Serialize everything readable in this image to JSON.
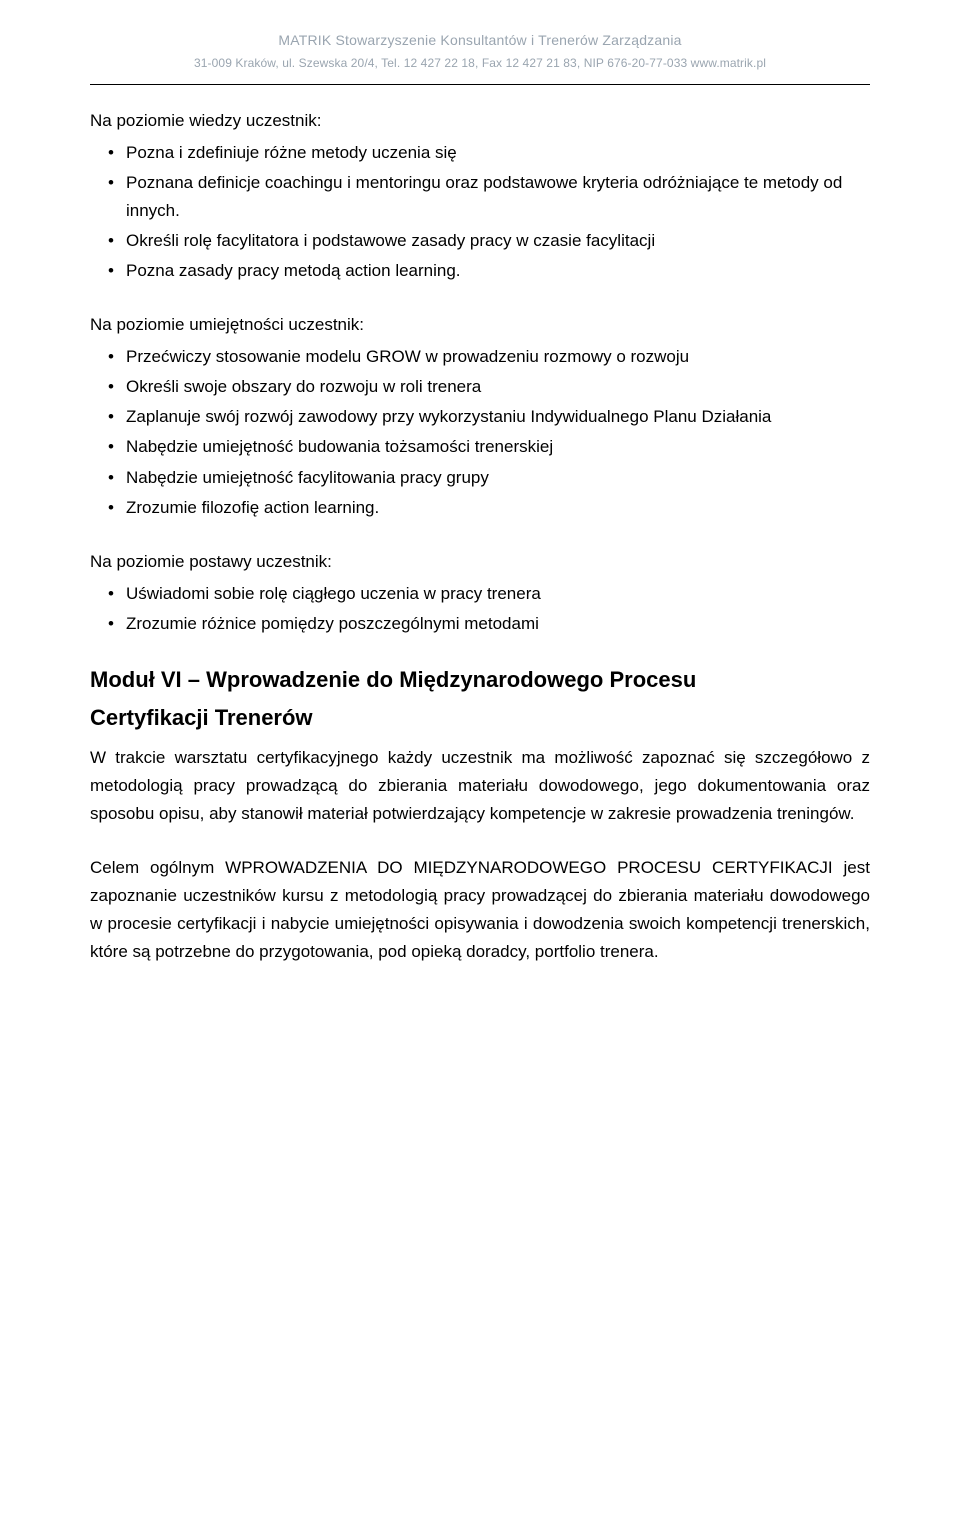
{
  "header": {
    "org": "MATRIK Stowarzyszenie Konsultantów i Trenerów Zarządzania",
    "address": "31-009 Kraków, ul. Szewska 20/4, Tel. 12 427 22 18, Fax 12 427 21 83, NIP 676-20-77-033 www.matrik.pl"
  },
  "section_knowledge": {
    "intro": "Na poziomie wiedzy uczestnik:",
    "items": [
      "Pozna i zdefiniuje różne metody uczenia się",
      "Poznana definicje coachingu i mentoringu oraz podstawowe kryteria odróżniające te metody od innych.",
      "Określi rolę facylitatora i podstawowe zasady pracy w czasie facylitacji",
      "Pozna zasady pracy metodą action learning."
    ]
  },
  "section_skills": {
    "intro": "Na poziomie umiejętności uczestnik:",
    "items": [
      "Przećwiczy stosowanie modelu GROW w prowadzeniu rozmowy o rozwoju",
      "Określi swoje obszary do rozwoju w roli trenera",
      "Zaplanuje swój rozwój zawodowy przy wykorzystaniu Indywidualnego Planu Działania",
      "Nabędzie umiejętność budowania tożsamości trenerskiej",
      "Nabędzie umiejętność facylitowania pracy grupy",
      "Zrozumie filozofię action learning."
    ]
  },
  "section_attitude": {
    "intro": "Na poziomie postawy uczestnik:",
    "items": [
      "Uświadomi sobie rolę ciągłego uczenia w pracy trenera",
      "Zrozumie różnice pomiędzy poszczególnymi metodami"
    ]
  },
  "module6": {
    "heading_line1": "Moduł VI – Wprowadzenie do Międzynarodowego Procesu",
    "heading_line2": "Certyfikacji Trenerów",
    "para1": "W trakcie warsztatu certyfikacyjnego każdy uczestnik ma możliwość zapoznać się szczegółowo z metodologią pracy prowadzącą do zbierania materiału dowodowego, jego dokumentowania oraz sposobu opisu, aby stanowił materiał potwierdzający kompetencje w zakresie prowadzenia treningów.",
    "para2": "Celem ogólnym WPROWADZENIA DO MIĘDZYNARODOWEGO PROCESU CERTYFIKACJI jest zapoznanie uczestników kursu z metodologią pracy prowadzącej do zbierania materiału dowodowego w procesie certyfikacji i nabycie umiejętności opisywania i dowodzenia swoich kompetencji trenerskich, które są potrzebne do przygotowania, pod opieką doradcy, portfolio trenera."
  }
}
